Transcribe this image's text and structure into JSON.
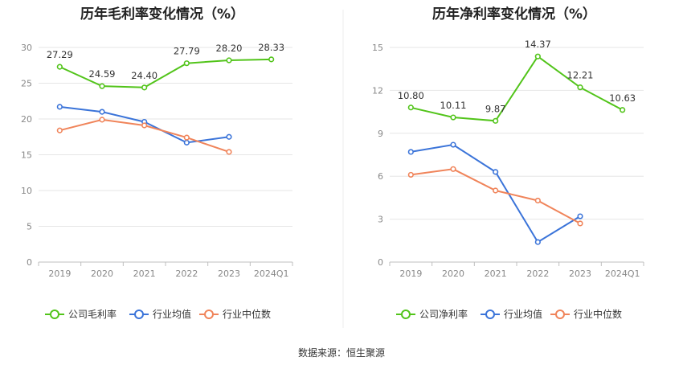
{
  "colors": {
    "green": "#52c41a",
    "blue": "#3b74d9",
    "orange": "#f0845a"
  },
  "charts": [
    {
      "title": "历年毛利率变化情况（%）",
      "chart_data": {
        "type": "line",
        "categories": [
          "2019",
          "2020",
          "2021",
          "2022",
          "2023",
          "2024Q1"
        ],
        "ylim": [
          0,
          30
        ],
        "yticks": [
          0,
          5,
          10,
          15,
          20,
          25,
          30
        ],
        "grid": true,
        "legend_position": "bottom",
        "series": [
          {
            "name": "公司毛利率",
            "color": "#52c41a",
            "labeled": true,
            "values": [
              27.29,
              24.59,
              24.4,
              27.79,
              28.2,
              28.33
            ],
            "labels": [
              "27.29",
              "24.59",
              "24.40",
              "27.79",
              "28.20",
              "28.33"
            ]
          },
          {
            "name": "行业均值",
            "color": "#3b74d9",
            "labeled": false,
            "values": [
              21.7,
              21.0,
              19.6,
              16.7,
              17.5,
              null
            ]
          },
          {
            "name": "行业中位数",
            "color": "#f0845a",
            "labeled": false,
            "values": [
              18.4,
              19.9,
              19.1,
              17.4,
              15.4,
              null
            ]
          }
        ]
      }
    },
    {
      "title": "历年净利率变化情况（%）",
      "chart_data": {
        "type": "line",
        "categories": [
          "2019",
          "2020",
          "2021",
          "2022",
          "2023",
          "2024Q1"
        ],
        "ylim": [
          0,
          15
        ],
        "yticks": [
          0,
          3,
          6,
          9,
          12,
          15
        ],
        "grid": true,
        "legend_position": "bottom",
        "series": [
          {
            "name": "公司净利率",
            "color": "#52c41a",
            "labeled": true,
            "values": [
              10.8,
              10.11,
              9.87,
              14.37,
              12.21,
              10.63
            ],
            "labels": [
              "10.80",
              "10.11",
              "9.87",
              "14.37",
              "12.21",
              "10.63"
            ]
          },
          {
            "name": "行业均值",
            "color": "#3b74d9",
            "labeled": false,
            "values": [
              7.7,
              8.2,
              6.3,
              1.4,
              3.2,
              null
            ]
          },
          {
            "name": "行业中位数",
            "color": "#f0845a",
            "labeled": false,
            "values": [
              6.1,
              6.5,
              5.0,
              4.3,
              2.7,
              null
            ]
          }
        ]
      }
    }
  ],
  "source": "数据来源：恒生聚源"
}
